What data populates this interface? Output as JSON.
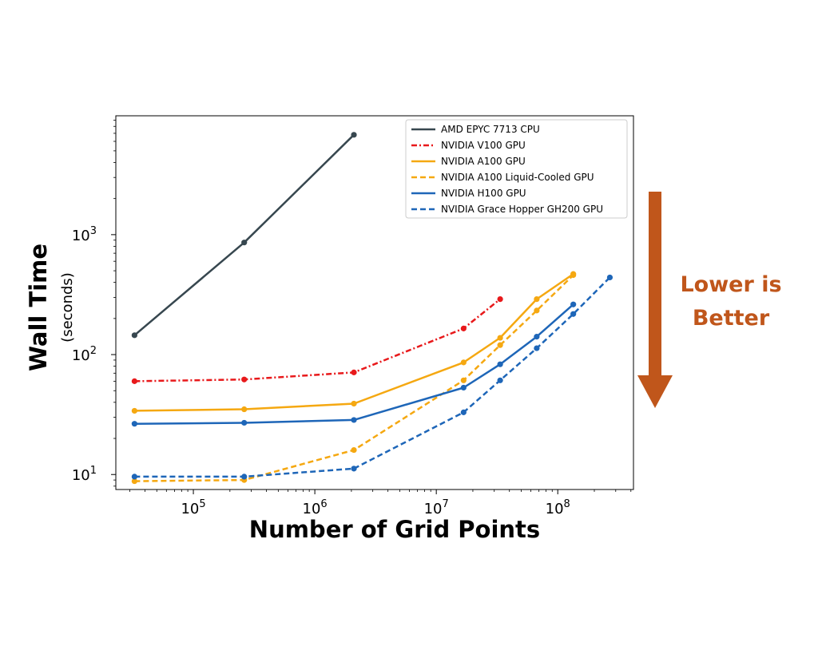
{
  "chart_data": {
    "type": "line",
    "xlabel": "Number of Grid Points",
    "ylabel": "Wall Time",
    "ylabel_sub": "(seconds)",
    "xscale": "log",
    "yscale": "log",
    "xlim": [
      23000,
      420000000
    ],
    "ylim": [
      7.5,
      9800
    ],
    "x_ticks": [
      {
        "value": 100000,
        "base": "10",
        "exp": "5"
      },
      {
        "value": 1000000,
        "base": "10",
        "exp": "6"
      },
      {
        "value": 10000000,
        "base": "10",
        "exp": "7"
      },
      {
        "value": 100000000,
        "base": "10",
        "exp": "8"
      }
    ],
    "y_ticks": [
      {
        "value": 10,
        "base": "10",
        "exp": "1"
      },
      {
        "value": 100,
        "base": "10",
        "exp": "2"
      },
      {
        "value": 1000,
        "base": "10",
        "exp": "3"
      }
    ],
    "grid": false,
    "legend_position": "upper-right",
    "series": [
      {
        "name": "AMD EPYC 7713 CPU",
        "color": "#37474f",
        "dash": "solid",
        "x": [
          32768,
          262144,
          2097152
        ],
        "y": [
          145,
          860,
          6800
        ]
      },
      {
        "name": "NVIDIA V100 GPU",
        "color": "#e8191b",
        "dash": "dashdot",
        "x": [
          32768,
          262144,
          2097152,
          16777216,
          33554432
        ],
        "y": [
          60,
          62,
          71,
          165,
          290
        ]
      },
      {
        "name": "NVIDIA A100 GPU",
        "color": "#f5a811",
        "dash": "solid",
        "x": [
          32768,
          262144,
          2097152,
          16777216,
          33554432,
          67108864,
          134217728
        ],
        "y": [
          34,
          35,
          39,
          86,
          138,
          290,
          470
        ]
      },
      {
        "name": "NVIDIA A100 Liquid-Cooled GPU",
        "color": "#f5a811",
        "dash": "dashed",
        "x": [
          32768,
          262144,
          2097152,
          16777216,
          33554432,
          67108864,
          134217728
        ],
        "y": [
          8.8,
          9.0,
          16,
          61,
          120,
          233,
          460
        ]
      },
      {
        "name": "NVIDIA H100 GPU",
        "color": "#1e66b8",
        "dash": "solid",
        "x": [
          32768,
          262144,
          2097152,
          16777216,
          33554432,
          67108864,
          134217728
        ],
        "y": [
          26.5,
          27,
          28.5,
          53,
          83,
          141,
          262
        ]
      },
      {
        "name": "NVIDIA Grace Hopper GH200 GPU",
        "color": "#1e66b8",
        "dash": "dashed",
        "x": [
          32768,
          262144,
          2097152,
          16777216,
          33554432,
          67108864,
          134217728,
          268435456
        ],
        "y": [
          9.6,
          9.6,
          11.2,
          33,
          61,
          113,
          218,
          440
        ]
      }
    ]
  },
  "annotation": {
    "lines": [
      "Lower is",
      "Better"
    ],
    "color": "#c0561b"
  }
}
